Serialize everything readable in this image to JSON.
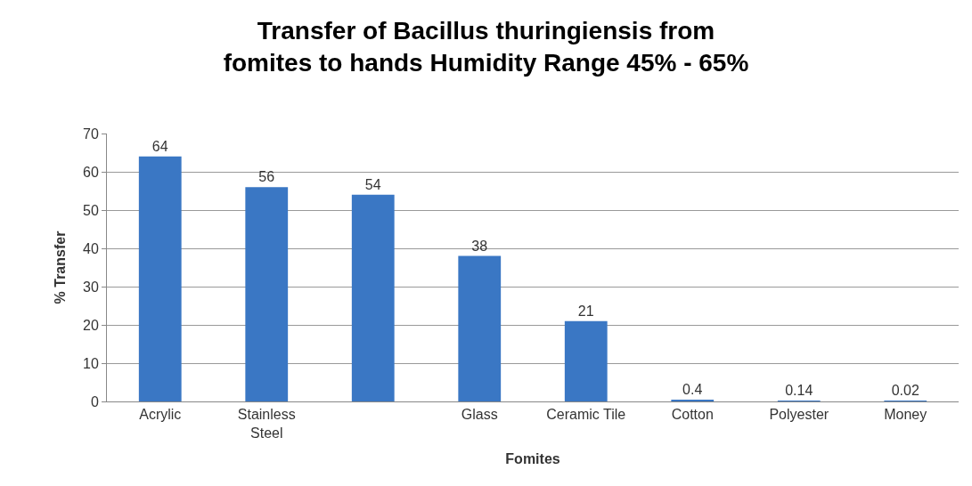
{
  "chart_data": {
    "type": "bar",
    "title": "Transfer of Bacillus thuringiensis from fomites to hands Humidity Range 45% - 65%",
    "xlabel": "Fomites",
    "ylabel": "% Transfer",
    "categories": [
      "Acrylic",
      "Stainless Steel",
      null,
      "Glass",
      "Ceramic Tile",
      "Cotton",
      "Polyester",
      "Money"
    ],
    "values": [
      64,
      56,
      54,
      38,
      21,
      0.4,
      0.14,
      0.02
    ],
    "color": "#3a77c4",
    "ylim": [
      0,
      70
    ],
    "yticks": [
      0,
      10,
      20,
      30,
      40,
      50,
      60,
      70
    ],
    "grid": "y",
    "data_labels": true,
    "legend": false
  }
}
